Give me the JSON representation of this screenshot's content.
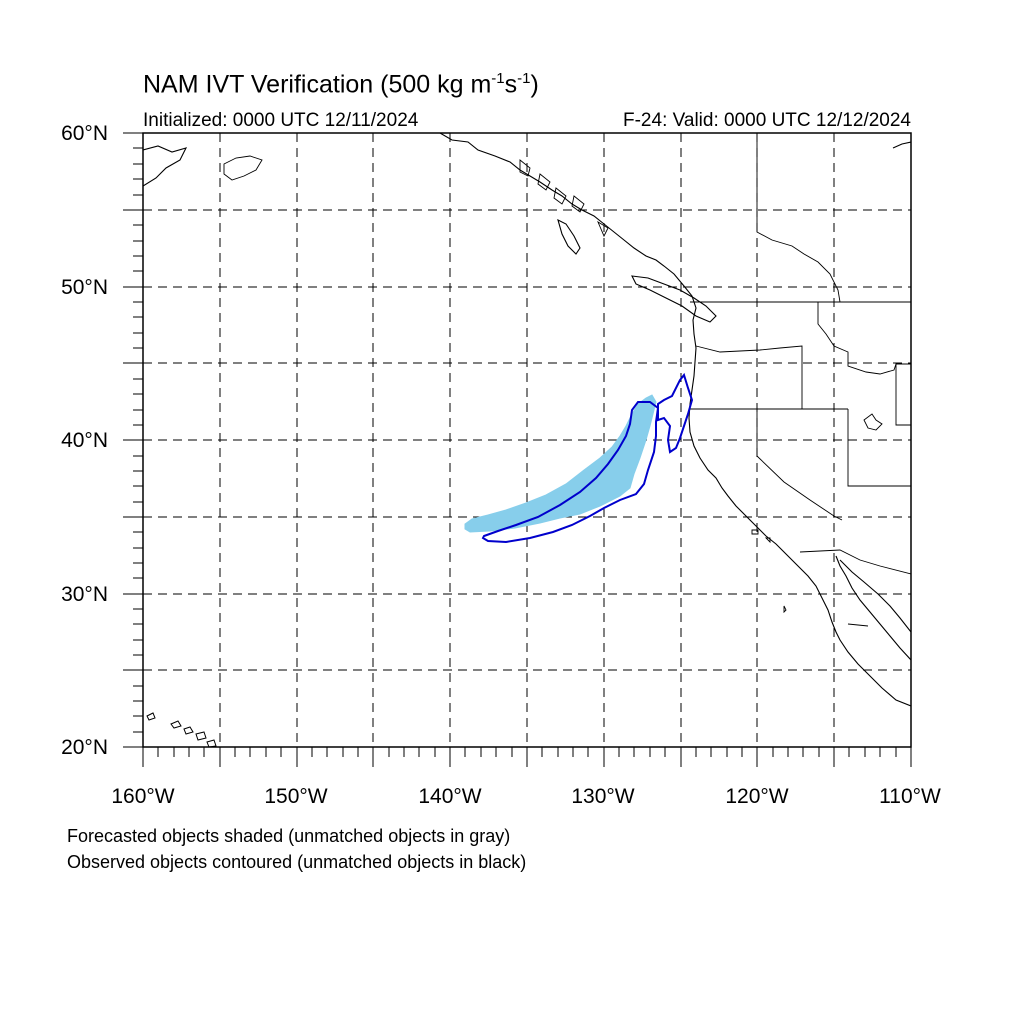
{
  "title": {
    "main": "NAM IVT Verification (500 kg m",
    "sup1": "-1",
    "mid": "s",
    "sup2": "-1",
    "end": ")"
  },
  "initialized": "Initialized: 0000 UTC 12/11/2024",
  "valid": "F-24: Valid: 0000 UTC 12/12/2024",
  "lat_labels": [
    "60°N",
    "50°N",
    "40°N",
    "30°N",
    "20°N"
  ],
  "lon_labels": [
    "160°W",
    "150°W",
    "140°W",
    "130°W",
    "120°W",
    "110°W"
  ],
  "notes": [
    "Forecasted objects shaded (unmatched objects in gray)",
    "Observed objects contoured (unmatched objects in black)"
  ],
  "colors": {
    "forecast_fill": "#87ceeb",
    "observed_contour": "#0000cc",
    "coastline": "#000000",
    "grid": "#000000"
  },
  "map": {
    "projection": "cylindrical equidistant",
    "lon_range": [
      -160,
      -110
    ],
    "lat_range": [
      20,
      60
    ],
    "grid_interval_deg": 5,
    "grid_style": "dashed"
  }
}
